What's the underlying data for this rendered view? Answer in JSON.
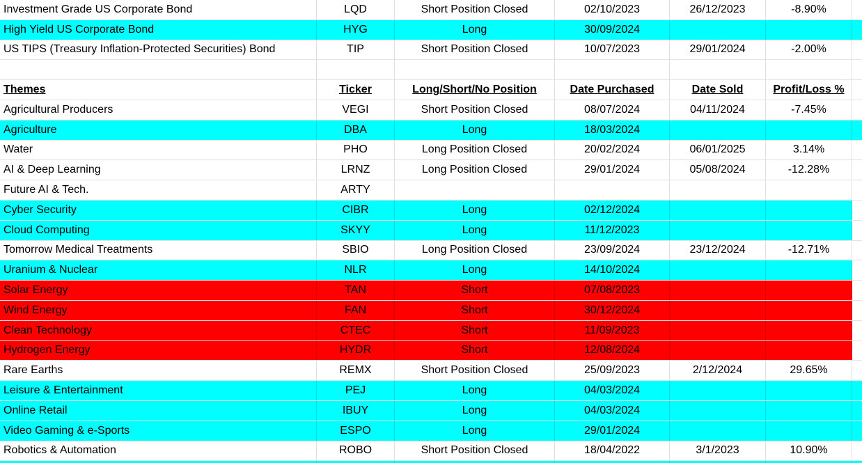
{
  "colors": {
    "highlight_cyan": "#00ffff",
    "highlight_red": "#ff0000",
    "text": "#000000",
    "gridline": "#dddddd"
  },
  "table": {
    "rows": [
      {
        "kind": "data",
        "name": "Investment Grade US Corporate Bond",
        "ticker": "LQD",
        "position": "Short Position Closed",
        "purchased": "02/10/2023",
        "sold": "26/12/2023",
        "pl": "-8.90%",
        "highlight": "none",
        "full": false
      },
      {
        "kind": "data",
        "name": "High Yield US Corporate Bond",
        "ticker": "HYG",
        "position": "Long",
        "purchased": "30/09/2024",
        "sold": "",
        "pl": "",
        "highlight": "cyan",
        "full": true
      },
      {
        "kind": "data",
        "name": "US TIPS (Treasury Inflation-Protected Securities) Bond",
        "ticker": "TIP",
        "position": "Short Position Closed",
        "purchased": "10/07/2023",
        "sold": "29/01/2024",
        "pl": "-2.00%",
        "highlight": "none",
        "full": false
      },
      {
        "kind": "blank",
        "name": "",
        "ticker": "",
        "position": "",
        "purchased": "",
        "sold": "",
        "pl": "",
        "highlight": "none",
        "full": false
      },
      {
        "kind": "header",
        "name": "Themes",
        "ticker": "Ticker",
        "position": "Long/Short/No Position",
        "purchased": "Date Purchased",
        "sold": "Date Sold",
        "pl": "Profit/Loss %",
        "highlight": "none",
        "full": false
      },
      {
        "kind": "data",
        "name": "Agricultural Producers",
        "ticker": "VEGI",
        "position": "Short Position Closed",
        "purchased": "08/07/2024",
        "sold": "04/11/2024",
        "pl": "-7.45%",
        "highlight": "none",
        "full": false
      },
      {
        "kind": "data",
        "name": "Agriculture",
        "ticker": "DBA",
        "position": "Long",
        "purchased": "18/03/2024",
        "sold": "",
        "pl": "",
        "highlight": "cyan",
        "full": true
      },
      {
        "kind": "data",
        "name": "Water",
        "ticker": "PHO",
        "position": "Long Position Closed",
        "purchased": "20/02/2024",
        "sold": "06/01/2025",
        "pl": "3.14%",
        "highlight": "none",
        "full": false
      },
      {
        "kind": "data",
        "name": "AI & Deep Learning",
        "ticker": "LRNZ",
        "position": "Long Position Closed",
        "purchased": "29/01/2024",
        "sold": "05/08/2024",
        "pl": "-12.28%",
        "highlight": "none",
        "full": false
      },
      {
        "kind": "data",
        "name": "Future AI & Tech.",
        "ticker": "ARTY",
        "position": "",
        "purchased": "",
        "sold": "",
        "pl": "",
        "highlight": "none",
        "full": false
      },
      {
        "kind": "data",
        "name": "Cyber Security",
        "ticker": "CIBR",
        "position": "Long",
        "purchased": "02/12/2024",
        "sold": "",
        "pl": "",
        "highlight": "cyan",
        "full": false
      },
      {
        "kind": "data",
        "name": "Cloud Computing",
        "ticker": "SKYY",
        "position": "Long",
        "purchased": "11/12/2023",
        "sold": "",
        "pl": "",
        "highlight": "cyan",
        "full": false
      },
      {
        "kind": "data",
        "name": "Tomorrow Medical Treatments",
        "ticker": "SBIO",
        "position": "Long Position Closed",
        "purchased": "23/09/2024",
        "sold": "23/12/2024",
        "pl": "-12.71%",
        "highlight": "none",
        "full": false
      },
      {
        "kind": "data",
        "name": "Uranium & Nuclear",
        "ticker": "NLR",
        "position": "Long",
        "purchased": "14/10/2024",
        "sold": "",
        "pl": "",
        "highlight": "cyan",
        "full": false
      },
      {
        "kind": "data",
        "name": "Solar Energy",
        "ticker": "TAN",
        "position": "Short",
        "purchased": "07/08/2023",
        "sold": "",
        "pl": "",
        "highlight": "red",
        "full": false
      },
      {
        "kind": "data",
        "name": "Wind Energy",
        "ticker": "FAN",
        "position": "Short",
        "purchased": "30/12/2024",
        "sold": "",
        "pl": "",
        "highlight": "red",
        "full": false
      },
      {
        "kind": "data",
        "name": "Clean Technology",
        "ticker": "CTEC",
        "position": "Short",
        "purchased": "11/09/2023",
        "sold": "",
        "pl": "",
        "highlight": "red",
        "full": false
      },
      {
        "kind": "data",
        "name": "Hydrogen Energy",
        "ticker": "HYDR",
        "position": "Short",
        "purchased": "12/08/2024",
        "sold": "",
        "pl": "",
        "highlight": "red",
        "full": false
      },
      {
        "kind": "data",
        "name": "Rare Earths",
        "ticker": "REMX",
        "position": "Short Position Closed",
        "purchased": "25/09/2023",
        "sold": "2/12/2024",
        "pl": "29.65%",
        "highlight": "none",
        "full": false
      },
      {
        "kind": "data",
        "name": "Leisure & Entertainment",
        "ticker": "PEJ",
        "position": "Long",
        "purchased": "04/03/2024",
        "sold": "",
        "pl": "",
        "highlight": "cyan",
        "full": true
      },
      {
        "kind": "data",
        "name": "Online Retail",
        "ticker": "IBUY",
        "position": "Long",
        "purchased": "04/03/2024",
        "sold": "",
        "pl": "",
        "highlight": "cyan",
        "full": true
      },
      {
        "kind": "data",
        "name": "Video Gaming & e-Sports",
        "ticker": "ESPO",
        "position": "Long",
        "purchased": "29/01/2024",
        "sold": "",
        "pl": "",
        "highlight": "cyan",
        "full": true
      },
      {
        "kind": "data",
        "name": "Robotics & Automation",
        "ticker": "ROBO",
        "position": "Short Position Closed",
        "purchased": "18/04/2022",
        "sold": "3/1/2023",
        "pl": "10.90%",
        "highlight": "none",
        "full": false
      },
      {
        "kind": "partial",
        "name": "",
        "ticker": "",
        "position": "",
        "purchased": "",
        "sold": "",
        "pl": "",
        "highlight": "cyan",
        "full": true
      }
    ]
  }
}
